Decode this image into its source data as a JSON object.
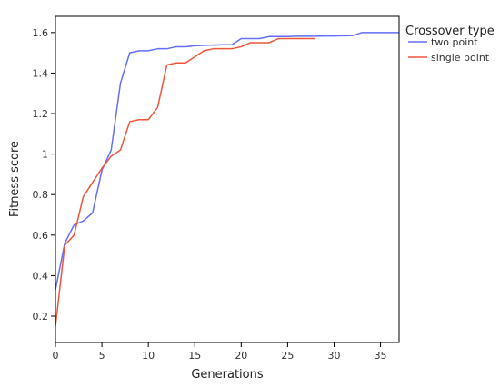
{
  "chart_data": {
    "type": "line",
    "title": "",
    "xlabel": "Generations",
    "ylabel": "Fitness score",
    "xlim": [
      0,
      37
    ],
    "ylim": [
      0.07,
      1.68
    ],
    "x_ticks": [
      0,
      5,
      10,
      15,
      20,
      25,
      30,
      35
    ],
    "x_tick_labels": [
      "0",
      "5",
      "10",
      "15",
      "20",
      "25",
      "30",
      "35"
    ],
    "y_ticks": [
      0.2,
      0.4,
      0.6,
      0.8,
      1.0,
      1.2,
      1.4,
      1.6
    ],
    "y_tick_labels": [
      "0.2",
      "0.4",
      "0.6",
      "0.8",
      "1",
      "1.2",
      "1.4",
      "1.6"
    ],
    "grid": false,
    "legend": {
      "title": "Crossover type",
      "placement": "outside-right"
    },
    "series": [
      {
        "name": "two point",
        "color": "#636efa",
        "x": [
          0,
          1,
          2,
          3,
          4,
          5,
          6,
          7,
          8,
          9,
          10,
          11,
          12,
          13,
          14,
          15,
          16,
          17,
          18,
          19,
          20,
          21,
          22,
          23,
          24,
          25,
          26,
          27,
          28,
          29,
          30,
          31,
          32,
          33,
          34,
          35,
          36,
          37
        ],
        "y": [
          0.33,
          0.56,
          0.65,
          0.67,
          0.71,
          0.92,
          1.02,
          1.35,
          1.5,
          1.51,
          1.51,
          1.52,
          1.52,
          1.53,
          1.53,
          1.535,
          1.537,
          1.538,
          1.54,
          1.54,
          1.57,
          1.57,
          1.57,
          1.58,
          1.58,
          1.58,
          1.582,
          1.582,
          1.582,
          1.583,
          1.583,
          1.584,
          1.585,
          1.6,
          1.6,
          1.6,
          1.6,
          1.6
        ]
      },
      {
        "name": "single point",
        "color": "#ef553b",
        "x": [
          0,
          1,
          2,
          3,
          4,
          5,
          6,
          7,
          8,
          9,
          10,
          11,
          12,
          13,
          14,
          15,
          16,
          17,
          18,
          19,
          20,
          21,
          22,
          23,
          24,
          25,
          26,
          27,
          28
        ],
        "y": [
          0.15,
          0.55,
          0.6,
          0.79,
          0.86,
          0.93,
          0.99,
          1.02,
          1.16,
          1.17,
          1.17,
          1.23,
          1.44,
          1.45,
          1.45,
          1.48,
          1.51,
          1.52,
          1.52,
          1.52,
          1.53,
          1.55,
          1.55,
          1.55,
          1.57,
          1.57,
          1.57,
          1.57,
          1.57
        ]
      }
    ]
  }
}
